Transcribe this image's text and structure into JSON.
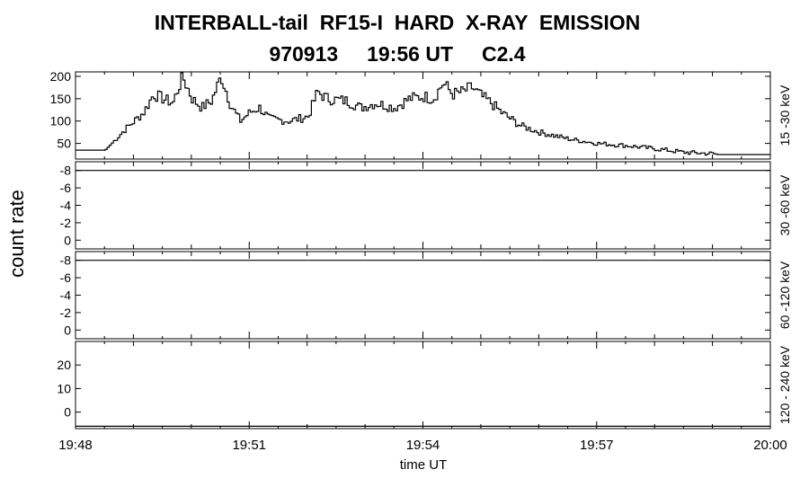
{
  "title_line1": "INTERBALL-tail  RF15-I  HARD  X-RAY  EMISSION",
  "title_date": "970913",
  "title_time": "19:56 UT",
  "title_class": "C2.4",
  "ylabel": "count rate",
  "xlabel": "time UT",
  "chart_data": [
    {
      "type": "line",
      "band": "15 -30 keV",
      "x_unit": "minutes",
      "xlim": [
        "19:48",
        "20:00"
      ],
      "ylim": [
        15,
        210
      ],
      "yticks": [
        50,
        100,
        150,
        200
      ],
      "x": [
        "19:48:00",
        "19:48:30",
        "19:48:50",
        "19:49:10",
        "19:49:20",
        "19:49:40",
        "19:49:50",
        "19:50:00",
        "19:50:10",
        "19:50:20",
        "19:50:30",
        "19:50:40",
        "19:50:50",
        "19:51:00",
        "19:51:10",
        "19:51:20",
        "19:51:40",
        "19:52:00",
        "19:52:10",
        "19:52:20",
        "19:52:40",
        "19:52:55",
        "19:53:10",
        "19:53:30",
        "19:53:45",
        "19:54:00",
        "19:54:10",
        "19:54:20",
        "19:54:30",
        "19:54:40",
        "19:54:50",
        "19:55:00",
        "19:55:10",
        "19:55:20",
        "19:55:40",
        "19:56:00",
        "19:56:30",
        "19:57:00",
        "19:57:30",
        "19:58:00",
        "19:58:30",
        "19:59:00",
        "19:59:05",
        "20:00:00"
      ],
      "y": [
        35,
        35,
        80,
        120,
        160,
        140,
        200,
        150,
        130,
        145,
        200,
        135,
        100,
        120,
        130,
        105,
        100,
        110,
        165,
        150,
        145,
        130,
        140,
        130,
        150,
        155,
        150,
        185,
        160,
        165,
        175,
        155,
        140,
        120,
        90,
        75,
        60,
        50,
        45,
        38,
        30,
        27,
        25,
        25
      ]
    },
    {
      "type": "line",
      "band": "30 -60 keV",
      "xlim": [
        "19:48",
        "20:00"
      ],
      "ylim": [
        1,
        -9
      ],
      "yticks": [
        "-8",
        "-6",
        "-4",
        "-2",
        "0"
      ],
      "x": [
        "19:48:00",
        "20:00:00"
      ],
      "y": [
        -8,
        -8
      ]
    },
    {
      "type": "line",
      "band": "60 -120 keV",
      "xlim": [
        "19:48",
        "20:00"
      ],
      "ylim": [
        1,
        -9
      ],
      "yticks": [
        "-8",
        "-6",
        "-4",
        "-2",
        "0"
      ],
      "x": [
        "19:48:00",
        "20:00:00"
      ],
      "y": [
        -8,
        -8
      ]
    },
    {
      "type": "line",
      "band": "120 - 240 keV",
      "xlim": [
        "19:48",
        "20:00"
      ],
      "ylim": [
        -7,
        30
      ],
      "yticks": [
        "0",
        "10",
        "20"
      ],
      "x": [
        "19:48:00",
        "20:00:00"
      ],
      "y": [
        -6,
        -6
      ]
    }
  ],
  "x_ticks": [
    "19:48",
    "19:51",
    "19:54",
    "19:57",
    "20:00"
  ]
}
